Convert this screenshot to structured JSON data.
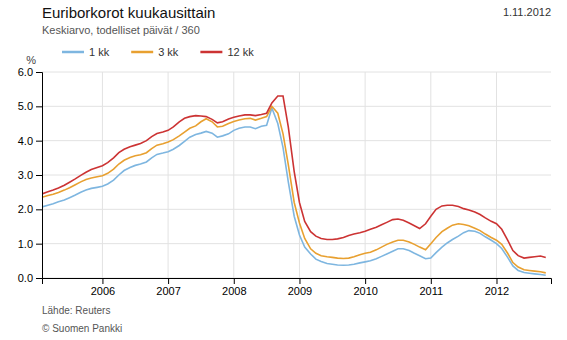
{
  "chart_data": {
    "type": "line",
    "title": "Euriborkorot kuukausittain",
    "subtitle": "Keskiarvo, todelliset päivät / 360",
    "y_label": "%",
    "annotations": [
      "1.11.2012",
      "Lähde: Reuters",
      "© Suomen Pankki"
    ],
    "legend": "top",
    "grid": true,
    "xlim": [
      2005.08,
      2012.83
    ],
    "xticks": [
      2006,
      2007,
      2008,
      2009,
      2010,
      2011,
      2012
    ],
    "ylim": [
      0.0,
      6.0
    ],
    "yticks": [
      {
        "value": 0.0,
        "label": "0.0"
      },
      {
        "value": 1.0,
        "label": "1.0"
      },
      {
        "value": 2.0,
        "label": "2.0"
      },
      {
        "value": 3.0,
        "label": "3.0"
      },
      {
        "value": 4.0,
        "label": "4.0"
      },
      {
        "value": 5.0,
        "label": "5.0"
      },
      {
        "value": 6.0,
        "label": "6.0"
      }
    ],
    "x": [
      2005.08,
      2005.17,
      2005.25,
      2005.33,
      2005.42,
      2005.5,
      2005.58,
      2005.67,
      2005.75,
      2005.83,
      2005.92,
      2006.0,
      2006.08,
      2006.17,
      2006.25,
      2006.33,
      2006.42,
      2006.5,
      2006.58,
      2006.67,
      2006.75,
      2006.83,
      2006.92,
      2007.0,
      2007.08,
      2007.17,
      2007.25,
      2007.33,
      2007.42,
      2007.5,
      2007.58,
      2007.67,
      2007.75,
      2007.83,
      2007.92,
      2008.0,
      2008.08,
      2008.17,
      2008.25,
      2008.33,
      2008.42,
      2008.5,
      2008.58,
      2008.67,
      2008.75,
      2008.83,
      2008.92,
      2009.0,
      2009.08,
      2009.17,
      2009.25,
      2009.33,
      2009.42,
      2009.5,
      2009.58,
      2009.67,
      2009.75,
      2009.83,
      2009.92,
      2010.0,
      2010.08,
      2010.17,
      2010.25,
      2010.33,
      2010.42,
      2010.5,
      2010.58,
      2010.67,
      2010.75,
      2010.83,
      2010.92,
      2011.0,
      2011.08,
      2011.17,
      2011.25,
      2011.33,
      2011.42,
      2011.5,
      2011.58,
      2011.67,
      2011.75,
      2011.83,
      2011.92,
      2012.0,
      2012.08,
      2012.17,
      2012.25,
      2012.33,
      2012.42,
      2012.5,
      2012.58,
      2012.67,
      2012.75
    ],
    "series": [
      {
        "name": "1 kk",
        "color": "#7EB6E0",
        "values": [
          2.07,
          2.12,
          2.16,
          2.22,
          2.27,
          2.34,
          2.41,
          2.5,
          2.56,
          2.61,
          2.64,
          2.67,
          2.74,
          2.85,
          3.0,
          3.13,
          3.22,
          3.28,
          3.32,
          3.38,
          3.5,
          3.6,
          3.64,
          3.68,
          3.75,
          3.86,
          3.98,
          4.1,
          4.18,
          4.22,
          4.27,
          4.22,
          4.1,
          4.14,
          4.2,
          4.3,
          4.36,
          4.4,
          4.4,
          4.35,
          4.42,
          4.45,
          4.95,
          4.5,
          3.8,
          2.8,
          1.8,
          1.25,
          0.9,
          0.7,
          0.55,
          0.48,
          0.42,
          0.4,
          0.38,
          0.37,
          0.38,
          0.4,
          0.44,
          0.47,
          0.5,
          0.56,
          0.63,
          0.7,
          0.78,
          0.85,
          0.85,
          0.8,
          0.72,
          0.65,
          0.56,
          0.58,
          0.74,
          0.9,
          1.02,
          1.12,
          1.22,
          1.32,
          1.38,
          1.36,
          1.3,
          1.2,
          1.1,
          1.0,
          0.86,
          0.6,
          0.35,
          0.22,
          0.16,
          0.14,
          0.12,
          0.1,
          0.08
        ]
      },
      {
        "name": "3 kk",
        "color": "#E8A030",
        "values": [
          2.35,
          2.4,
          2.44,
          2.49,
          2.56,
          2.63,
          2.71,
          2.8,
          2.87,
          2.91,
          2.95,
          2.98,
          3.05,
          3.17,
          3.32,
          3.43,
          3.51,
          3.56,
          3.59,
          3.65,
          3.77,
          3.87,
          3.91,
          3.96,
          4.03,
          4.14,
          4.25,
          4.36,
          4.43,
          4.55,
          4.64,
          4.55,
          4.4,
          4.42,
          4.5,
          4.56,
          4.6,
          4.64,
          4.65,
          4.6,
          4.65,
          4.7,
          5.0,
          4.8,
          4.2,
          3.3,
          2.2,
          1.6,
          1.15,
          0.85,
          0.72,
          0.65,
          0.62,
          0.6,
          0.58,
          0.57,
          0.58,
          0.62,
          0.68,
          0.72,
          0.75,
          0.82,
          0.9,
          0.98,
          1.05,
          1.1,
          1.1,
          1.05,
          0.98,
          0.9,
          0.82,
          1.0,
          1.18,
          1.35,
          1.45,
          1.54,
          1.58,
          1.56,
          1.52,
          1.45,
          1.38,
          1.28,
          1.18,
          1.1,
          0.98,
          0.72,
          0.45,
          0.32,
          0.24,
          0.22,
          0.2,
          0.18,
          0.15
        ]
      },
      {
        "name": "12 kk",
        "color": "#CC3333",
        "values": [
          2.45,
          2.51,
          2.56,
          2.62,
          2.7,
          2.79,
          2.88,
          2.99,
          3.08,
          3.16,
          3.22,
          3.27,
          3.36,
          3.5,
          3.65,
          3.75,
          3.82,
          3.87,
          3.92,
          4.0,
          4.12,
          4.21,
          4.25,
          4.3,
          4.4,
          4.55,
          4.65,
          4.7,
          4.73,
          4.72,
          4.7,
          4.62,
          4.52,
          4.55,
          4.63,
          4.68,
          4.72,
          4.75,
          4.75,
          4.73,
          4.76,
          4.8,
          5.1,
          5.3,
          5.3,
          4.4,
          3.1,
          2.2,
          1.65,
          1.35,
          1.22,
          1.15,
          1.12,
          1.12,
          1.14,
          1.18,
          1.24,
          1.28,
          1.32,
          1.36,
          1.42,
          1.48,
          1.55,
          1.62,
          1.7,
          1.72,
          1.68,
          1.6,
          1.52,
          1.44,
          1.58,
          1.8,
          2.0,
          2.1,
          2.12,
          2.12,
          2.08,
          2.02,
          1.98,
          1.92,
          1.85,
          1.75,
          1.65,
          1.58,
          1.42,
          1.1,
          0.8,
          0.65,
          0.58,
          0.6,
          0.62,
          0.64,
          0.6
        ]
      }
    ]
  }
}
